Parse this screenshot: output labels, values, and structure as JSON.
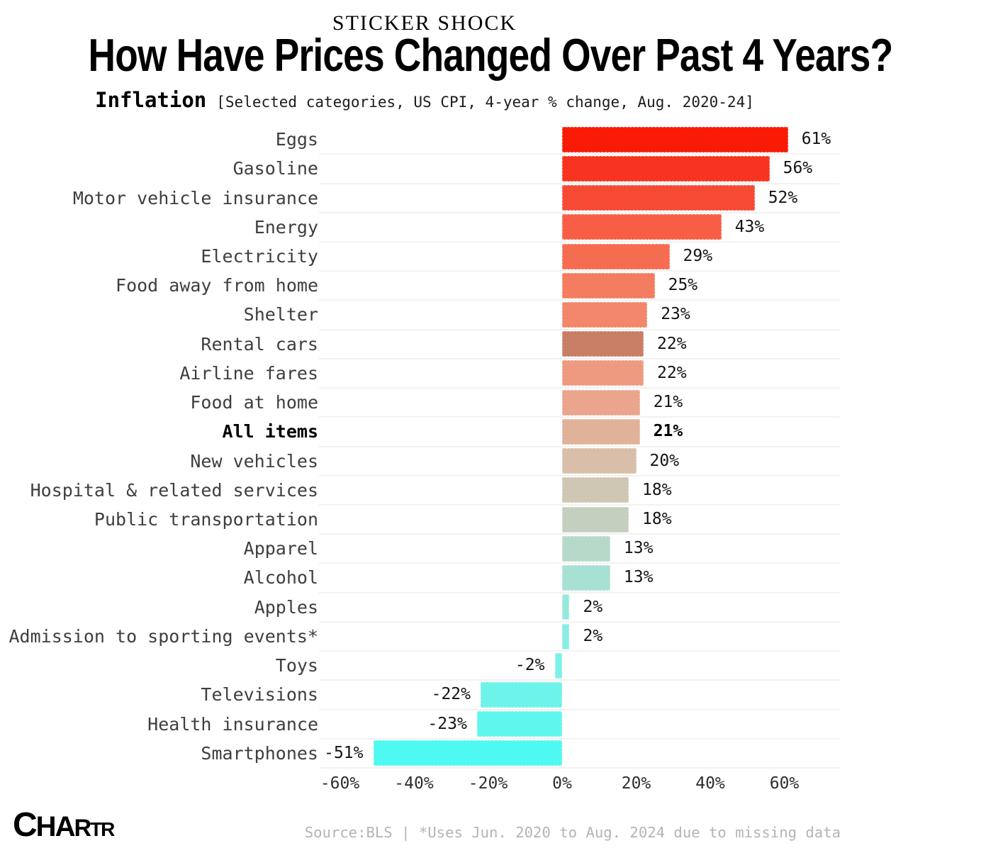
{
  "header": {
    "kicker": "STICKER SHOCK",
    "title": "How Have Prices Changed Over Past 4 Years?",
    "subtitle_label": "Inflation",
    "subtitle_note": "[Selected categories, US CPI, 4-year % change, Aug. 2020-24]"
  },
  "chart_data": {
    "type": "bar",
    "orientation": "horizontal",
    "title": "How Have Prices Changed Over Past 4 Years?",
    "subtitle": "Inflation [Selected categories, US CPI, 4-year % change, Aug. 2020-24]",
    "unit": "percent (4-year % change)",
    "categories": [
      "Eggs",
      "Gasoline",
      "Motor vehicle insurance",
      "Energy",
      "Electricity",
      "Food away from home",
      "Shelter",
      "Rental cars",
      "Airline fares",
      "Food at home",
      "All items",
      "New vehicles",
      "Hospital & related services",
      "Public transportation",
      "Apparel",
      "Alcohol",
      "Apples",
      "Admission to sporting events*",
      "Toys",
      "Televisions",
      "Health insurance",
      "Smartphones"
    ],
    "values": [
      61,
      56,
      52,
      43,
      29,
      25,
      23,
      22,
      22,
      21,
      21,
      20,
      18,
      18,
      13,
      13,
      2,
      2,
      -2,
      -22,
      -23,
      -51
    ],
    "value_labels": [
      "61%",
      "56%",
      "52%",
      "43%",
      "29%",
      "25%",
      "23%",
      "22%",
      "22%",
      "21%",
      "21%",
      "20%",
      "18%",
      "18%",
      "13%",
      "13%",
      "2%",
      "2%",
      "-2%",
      "-22%",
      "-23%",
      "-51%"
    ],
    "bar_colors": [
      "#f91b06",
      "#f83420",
      "#f74a35",
      "#f75e45",
      "#f66c50",
      "#f47c60",
      "#f2876b",
      "#c97e66",
      "#ee9a81",
      "#eba58d",
      "#e1b29a",
      "#d9bfa9",
      "#cfc7b3",
      "#c4cfc0",
      "#b6d9ca",
      "#a6e1d4",
      "#95e9dc",
      "#88ede3",
      "#7cf1e7",
      "#6df3ea",
      "#5ff6ee",
      "#4ef9f1"
    ],
    "highlight_index": 10,
    "xlim": [
      -60,
      76
    ],
    "x_tick_values": [
      -60,
      -40,
      -20,
      0,
      20,
      40,
      60
    ],
    "x_tick_labels": [
      "-60%",
      "-40%",
      "-20%",
      "0%",
      "20%",
      "40%",
      "60%"
    ],
    "grid": "horizontal row separators, very light gray",
    "legend": "none"
  },
  "footer": {
    "logo": "CHARTR",
    "source": "Source:BLS | *Uses Jun. 2020 to Aug. 2024 due to missing data"
  },
  "colors": {
    "background": "#ffffff",
    "title": "#000000",
    "category_label": "#3e3e3e",
    "value_label": "#141414",
    "axis_label": "#2e2e2e",
    "gridline": "#f4f2f0",
    "source_text": "#b4b4b4",
    "max_positive_bar": "#f91b06",
    "max_negative_bar": "#4ef9f1"
  }
}
